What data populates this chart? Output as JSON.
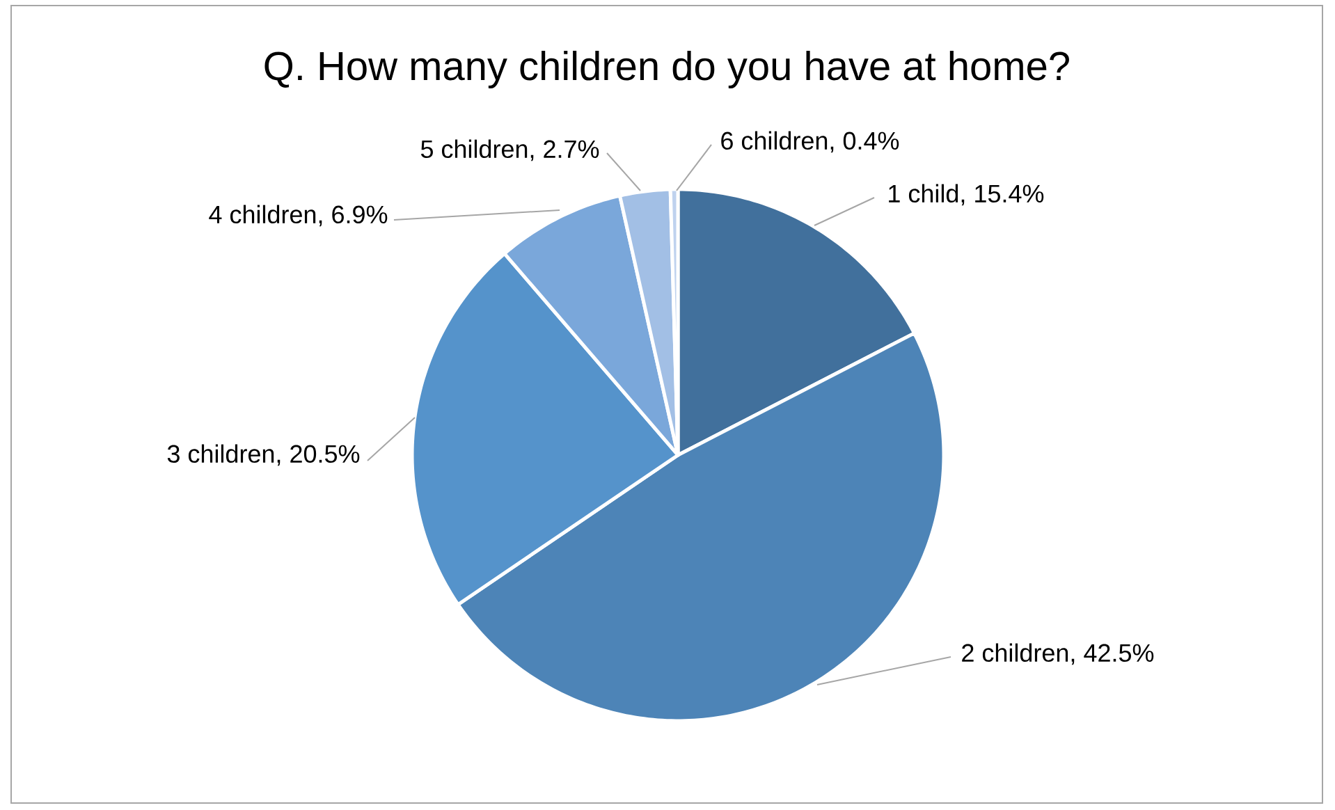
{
  "chart_data": {
    "type": "pie",
    "title": "Q. How many children do you have at home?",
    "categories": [
      "1 child, 15.4%",
      "2 children, 42.5%",
      "3 children, 20.5%",
      "4 children, 6.9%",
      "5 children, 2.7%",
      "6 children, 0.4%"
    ],
    "values": [
      15.4,
      42.5,
      20.5,
      6.9,
      2.7,
      0.4
    ],
    "colors": [
      "#41709c",
      "#4d84b7",
      "#5593cb",
      "#7aa7da",
      "#a2bfe5",
      "#bfd2ee"
    ]
  }
}
